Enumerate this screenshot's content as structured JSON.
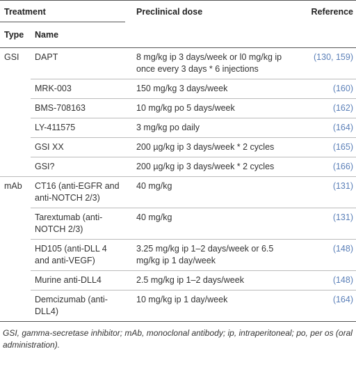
{
  "header": {
    "treatment": "Treatment",
    "dose": "Preclinical dose",
    "reference": "Reference",
    "type": "Type",
    "name": "Name"
  },
  "groups": [
    {
      "type": "GSI",
      "rows": [
        {
          "name": "DAPT",
          "dose": "8 mg/kg ip 3 days/week or l0 mg/kg ip once every 3 days * 6 injections",
          "reference": "(130, 159)"
        },
        {
          "name": "MRK-003",
          "dose": "150 mg/kg 3 days/week",
          "reference": "(160)"
        },
        {
          "name": "BMS-708163",
          "dose": "10 mg/kg po 5 days/week",
          "reference": "(162)"
        },
        {
          "name": "LY-411575",
          "dose": "3 mg/kg po daily",
          "reference": "(164)"
        },
        {
          "name": "GSI XX",
          "dose": "200 µg/kg ip 3 days/week * 2 cycles",
          "reference": "(165)"
        },
        {
          "name": "GSI?",
          "dose": "200 µg/kg ip 3 days/week * 2 cycles",
          "reference": "(166)"
        }
      ]
    },
    {
      "type": "mAb",
      "rows": [
        {
          "name": "CT16 (anti-EGFR and anti-NOTCH 2/3)",
          "dose": "40 mg/kg",
          "reference": "(131)"
        },
        {
          "name": "Tarextumab (anti-NOTCH 2/3)",
          "dose": "40 mg/kg",
          "reference": "(131)"
        },
        {
          "name": "HD105 (anti-DLL 4 and anti-VEGF)",
          "dose": "3.25 mg/kg ip 1–2 days/week or 6.5 mg/kg ip 1 day/week",
          "reference": "(148)"
        },
        {
          "name": "Murine anti-DLL4",
          "dose": "2.5 mg/kg ip 1–2 days/week",
          "reference": "(148)"
        },
        {
          "name": "Demcizumab (anti-DLL4)",
          "dose": "10 mg/kg ip 1 day/week",
          "reference": "(164)"
        }
      ]
    }
  ],
  "footnote": "GSI, gamma-secretase inhibitor; mAb, monoclonal antibody; ip, intraperitoneal; po, per os (oral administration)."
}
